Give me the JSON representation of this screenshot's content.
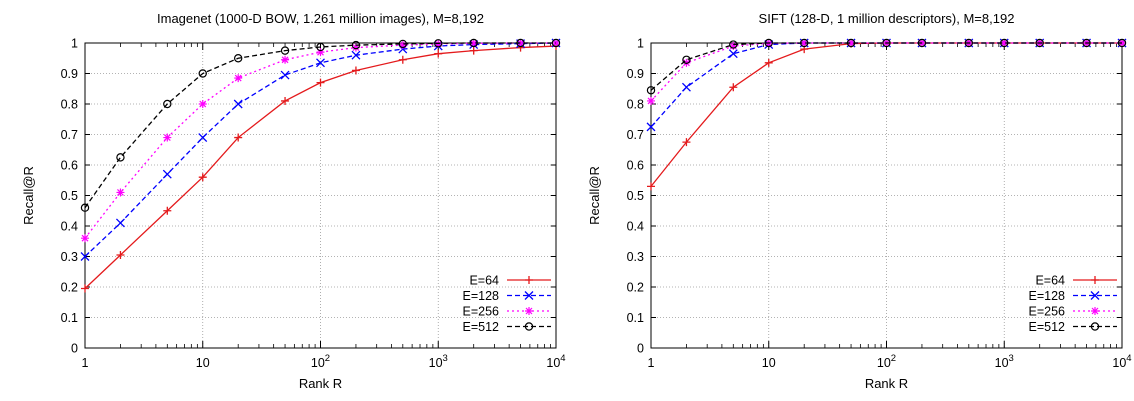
{
  "chart_data": [
    {
      "type": "line",
      "title": "Imagenet (1000-D BOW, 1.261 million images), M=8,192",
      "xlabel": "Rank R",
      "ylabel": "Recall@R",
      "xscale": "log",
      "xlim": [
        1,
        10000
      ],
      "ylim": [
        0,
        1
      ],
      "grid": true,
      "legend_position": "bottom-right",
      "x_ticks": [
        1,
        10,
        100,
        1000,
        10000
      ],
      "x_tick_labels": [
        {
          "base": "1",
          "exp": ""
        },
        {
          "base": "10",
          "exp": ""
        },
        {
          "base": "10",
          "exp": "2"
        },
        {
          "base": "10",
          "exp": "3"
        },
        {
          "base": "10",
          "exp": "4"
        }
      ],
      "y_ticks": [
        0,
        0.1,
        0.2,
        0.3,
        0.4,
        0.5,
        0.6,
        0.7,
        0.8,
        0.9,
        1
      ],
      "y_tick_labels": [
        "0",
        "0.1",
        "0.2",
        "0.3",
        "0.4",
        "0.5",
        "0.6",
        "0.7",
        "0.8",
        "0.9",
        "1"
      ],
      "x": [
        1,
        2,
        5,
        10,
        20,
        50,
        100,
        200,
        500,
        1000,
        2000,
        5000,
        10000
      ],
      "series": [
        {
          "name": "E=64",
          "color": "#e41a1c",
          "dash": "solid",
          "marker": "plus",
          "values": [
            0.195,
            0.305,
            0.45,
            0.56,
            0.69,
            0.81,
            0.87,
            0.91,
            0.945,
            0.965,
            0.975,
            0.985,
            0.99
          ]
        },
        {
          "name": "E=128",
          "color": "#0000ff",
          "dash": "dashed",
          "marker": "x",
          "values": [
            0.3,
            0.41,
            0.57,
            0.69,
            0.8,
            0.895,
            0.935,
            0.96,
            0.98,
            0.99,
            0.995,
            0.998,
            1.0
          ]
        },
        {
          "name": "E=256",
          "color": "#ff00ff",
          "dash": "dotted",
          "marker": "star",
          "values": [
            0.36,
            0.51,
            0.69,
            0.8,
            0.885,
            0.945,
            0.97,
            0.985,
            0.993,
            0.997,
            0.999,
            1.0,
            1.0
          ]
        },
        {
          "name": "E=512",
          "color": "#000000",
          "dash": "dashed",
          "marker": "circle",
          "values": [
            0.46,
            0.625,
            0.8,
            0.9,
            0.95,
            0.975,
            0.987,
            0.993,
            0.997,
            0.999,
            1.0,
            1.0,
            1.0
          ]
        }
      ]
    },
    {
      "type": "line",
      "title": "SIFT (128-D, 1 million descriptors), M=8,192",
      "xlabel": "Rank R",
      "ylabel": "Recall@R",
      "xscale": "log",
      "xlim": [
        1,
        10000
      ],
      "ylim": [
        0,
        1
      ],
      "grid": true,
      "legend_position": "bottom-right",
      "x_ticks": [
        1,
        10,
        100,
        1000,
        10000
      ],
      "x_tick_labels": [
        {
          "base": "1",
          "exp": ""
        },
        {
          "base": "10",
          "exp": ""
        },
        {
          "base": "10",
          "exp": "2"
        },
        {
          "base": "10",
          "exp": "3"
        },
        {
          "base": "10",
          "exp": "4"
        }
      ],
      "y_ticks": [
        0,
        0.1,
        0.2,
        0.3,
        0.4,
        0.5,
        0.6,
        0.7,
        0.8,
        0.9,
        1
      ],
      "y_tick_labels": [
        "0",
        "0.1",
        "0.2",
        "0.3",
        "0.4",
        "0.5",
        "0.6",
        "0.7",
        "0.8",
        "0.9",
        "1"
      ],
      "x": [
        1,
        2,
        5,
        10,
        20,
        50,
        100,
        200,
        500,
        1000,
        2000,
        5000,
        10000
      ],
      "series": [
        {
          "name": "E=64",
          "color": "#e41a1c",
          "dash": "solid",
          "marker": "plus",
          "values": [
            0.53,
            0.675,
            0.855,
            0.935,
            0.98,
            0.998,
            1.0,
            1.0,
            1.0,
            1.0,
            1.0,
            1.0,
            1.0
          ]
        },
        {
          "name": "E=128",
          "color": "#0000ff",
          "dash": "dashed",
          "marker": "x",
          "values": [
            0.725,
            0.855,
            0.965,
            0.995,
            1.0,
            1.0,
            1.0,
            1.0,
            1.0,
            1.0,
            1.0,
            1.0,
            1.0
          ]
        },
        {
          "name": "E=256",
          "color": "#ff00ff",
          "dash": "dotted",
          "marker": "star",
          "values": [
            0.81,
            0.935,
            0.99,
            0.999,
            1.0,
            1.0,
            1.0,
            1.0,
            1.0,
            1.0,
            1.0,
            1.0,
            1.0
          ]
        },
        {
          "name": "E=512",
          "color": "#000000",
          "dash": "dashed",
          "marker": "circle",
          "values": [
            0.845,
            0.945,
            0.995,
            1.0,
            1.0,
            1.0,
            1.0,
            1.0,
            1.0,
            1.0,
            1.0,
            1.0,
            1.0
          ]
        }
      ]
    }
  ]
}
